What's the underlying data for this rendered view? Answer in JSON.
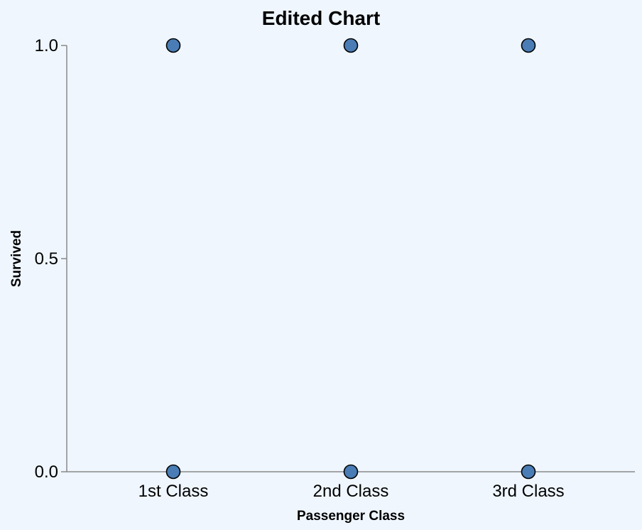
{
  "chart_data": {
    "type": "scatter",
    "title": "Edited Chart",
    "xlabel": "Passenger Class",
    "ylabel": "Survived",
    "categories": [
      "1st Class",
      "2nd Class",
      "3rd Class"
    ],
    "y_ticks": [
      "0.0",
      "0.5",
      "1.0"
    ],
    "ylim": [
      0,
      1
    ],
    "grid": false,
    "points": [
      {
        "x": "1st Class",
        "y": 1
      },
      {
        "x": "1st Class",
        "y": 0
      },
      {
        "x": "2nd Class",
        "y": 1
      },
      {
        "x": "2nd Class",
        "y": 0
      },
      {
        "x": "3rd Class",
        "y": 1
      },
      {
        "x": "3rd Class",
        "y": 0
      }
    ],
    "point_color": "#4a7db5",
    "background": "#eff6fe"
  }
}
